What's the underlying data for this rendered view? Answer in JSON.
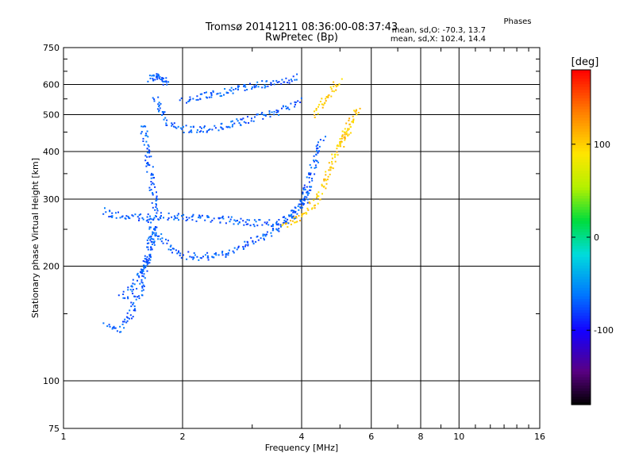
{
  "chart_data": {
    "type": "scatter",
    "title": "Tromsø 20141211 08:36:00-08:37:43",
    "subtitle": "RwPretec (Bp)",
    "xlabel": "Frequency [MHz]",
    "ylabel": "Stationary phase Virtual Height [km]",
    "x_scale": "log",
    "y_scale": "log",
    "xlim": [
      1,
      16
    ],
    "ylim": [
      75,
      750
    ],
    "x_ticks": [
      1,
      2,
      4,
      6,
      8,
      10,
      16
    ],
    "x_tick_labels": [
      "1",
      "2",
      "4",
      "6",
      "8",
      "10",
      "16"
    ],
    "y_ticks": [
      75,
      100,
      200,
      300,
      400,
      500,
      600,
      750
    ],
    "y_tick_labels": [
      "75",
      "100",
      "200",
      "300",
      "400",
      "500",
      "600",
      "750"
    ],
    "grid": true,
    "stats": {
      "heading": "Phases",
      "line_o": "mean, sd,O: -70.3, 13.7",
      "line_x": "mean, sd,X: 102.4, 14.4"
    },
    "colorbar": {
      "label": "[deg]",
      "range": [
        -180,
        180
      ],
      "ticks": [
        100,
        0,
        -100
      ],
      "tick_labels": [
        "100",
        "0",
        "-100"
      ],
      "colormap": "rainbow"
    },
    "series": [
      {
        "mode": "O",
        "phase_mean": -70.3,
        "phase_sd": 13.7,
        "curves": [
          {
            "x": [
              1.64,
              1.66,
              1.68,
              1.7,
              1.72,
              1.74,
              1.76,
              1.78,
              1.8,
              1.82
            ],
            "y": [
              620,
              628,
              632,
              635,
              630,
              625,
              622,
              618,
              615,
              612
            ]
          },
          {
            "x": [
              1.7,
              1.75,
              1.8,
              1.85,
              1.95,
              2.1,
              2.3,
              2.5,
              2.8,
              3.1,
              3.4,
              3.7,
              3.95
            ],
            "y": [
              560,
              520,
              490,
              470,
              462,
              458,
              460,
              465,
              480,
              495,
              510,
              530,
              545
            ]
          },
          {
            "x": [
              2.0,
              2.2,
              2.5,
              2.8,
              3.0,
              3.3,
              3.6,
              3.9
            ],
            "y": [
              545,
              560,
              575,
              590,
              595,
              605,
              615,
              630
            ]
          },
          {
            "x": [
              1.65,
              1.75,
              1.85,
              2.0,
              2.2,
              2.5,
              2.8,
              3.0,
              3.3,
              3.6,
              3.9,
              4.1,
              4.3,
              4.5
            ],
            "y": [
              260,
              240,
              225,
              215,
              212,
              215,
              225,
              235,
              245,
              262,
              285,
              320,
              380,
              440
            ]
          },
          {
            "x": [
              1.55,
              1.65,
              1.8,
              2.0,
              2.3,
              2.6,
              2.9,
              3.2,
              3.5,
              3.8,
              4.0,
              4.2
            ],
            "y": [
              268,
              270,
              272,
              270,
              268,
              265,
              262,
              260,
              262,
              270,
              290,
              330
            ]
          },
          {
            "x": [
              1.28,
              1.32,
              1.36,
              1.4,
              1.46,
              1.5,
              1.55,
              1.58,
              1.62,
              1.65,
              1.68
            ],
            "y": [
              140,
              138,
              137,
              140,
              148,
              158,
              170,
              185,
              205,
              230,
              260
            ]
          },
          {
            "x": [
              1.4,
              1.45,
              1.5,
              1.55,
              1.6,
              1.65,
              1.7
            ],
            "y": [
              165,
              170,
              178,
              190,
              205,
              225,
              250
            ]
          },
          {
            "x": [
              1.26,
              1.35,
              1.45,
              1.55
            ],
            "y": [
              280,
              275,
              272,
              270
            ]
          },
          {
            "x": [
              1.58,
              1.6,
              1.62,
              1.64,
              1.66,
              1.68,
              1.7,
              1.72
            ],
            "y": [
              470,
              430,
              400,
              370,
              340,
              310,
              290,
              275
            ]
          }
        ]
      },
      {
        "mode": "X",
        "phase_mean": 102.4,
        "phase_sd": 14.4,
        "curves": [
          {
            "x": [
              3.55,
              3.7,
              3.85,
              4.0,
              4.15,
              4.3,
              4.45,
              4.6,
              4.75,
              4.9,
              5.05,
              5.2,
              5.35
            ],
            "y": [
              258,
              262,
              266,
              272,
              282,
              298,
              320,
              345,
              375,
              405,
              430,
              455,
              480
            ]
          },
          {
            "x": [
              4.3,
              4.4,
              4.5,
              4.6,
              4.7,
              4.8,
              4.9,
              5.0
            ],
            "y": [
              500,
              520,
              540,
              560,
              575,
              590,
              605,
              620
            ]
          },
          {
            "x": [
              5.0,
              5.1,
              5.2,
              5.3,
              5.4,
              5.5,
              5.55
            ],
            "y": [
              420,
              440,
              460,
              480,
              500,
              515,
              525
            ]
          }
        ]
      }
    ]
  }
}
